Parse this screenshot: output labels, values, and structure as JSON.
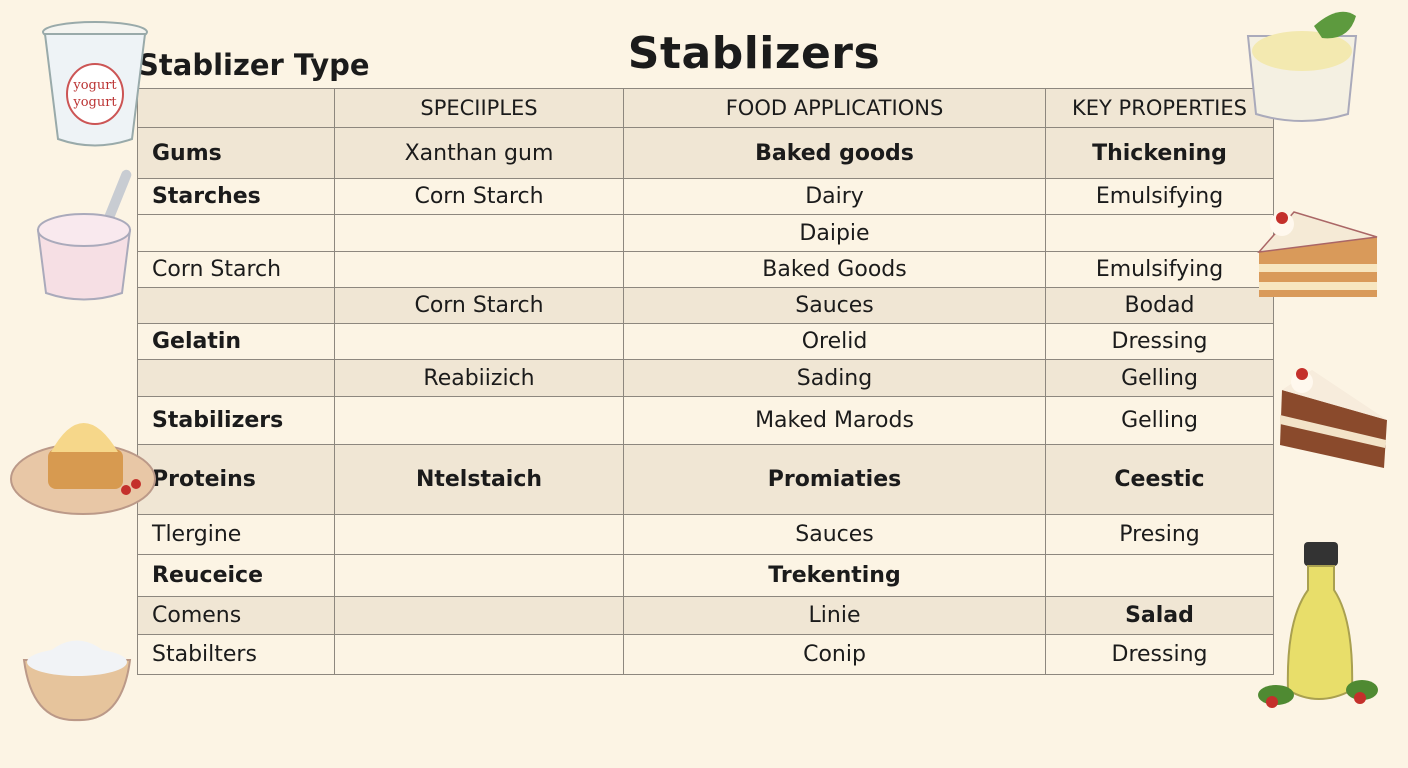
{
  "title": "Stablizers",
  "type_label": "Stablizer Type",
  "yogurt_logo": [
    "yogurt",
    "yogurt"
  ],
  "table": {
    "headers": [
      "",
      "SPECIIPLES",
      "FOOD APPLICATIONS",
      "KEY PROPERTIES"
    ],
    "rows": [
      {
        "cells": [
          "Gums",
          "Xanthan gum",
          "Baked goods",
          "Thickening"
        ],
        "bold": [
          true,
          false,
          true,
          true
        ],
        "shade": true
      },
      {
        "cells": [
          "Starches",
          "Corn Starch",
          "Dairy",
          "Emulsifying"
        ],
        "bold": [
          true,
          false,
          false,
          false
        ],
        "shade": false
      },
      {
        "cells": [
          "",
          "",
          "Daipie",
          ""
        ],
        "bold": [
          false,
          false,
          false,
          false
        ],
        "shade": false
      },
      {
        "cells": [
          "Corn Starch",
          "",
          "Baked Goods",
          "Emulsifying"
        ],
        "bold": [
          false,
          false,
          false,
          false
        ],
        "shade": false
      },
      {
        "cells": [
          "",
          "Corn Starch",
          "Sauces",
          "Bodad"
        ],
        "bold": [
          false,
          false,
          false,
          false
        ],
        "shade": true
      },
      {
        "cells": [
          "Gelatin",
          "",
          "Orelid",
          "Dressing"
        ],
        "bold": [
          true,
          false,
          false,
          false
        ],
        "shade": false
      },
      {
        "cells": [
          "",
          "Reabiizich",
          "Sading",
          "Gelling"
        ],
        "bold": [
          false,
          false,
          false,
          false
        ],
        "shade": true
      },
      {
        "cells": [
          "Stabilizers",
          "",
          "Maked Marods",
          "Gelling"
        ],
        "bold": [
          true,
          false,
          false,
          false
        ],
        "shade": false
      },
      {
        "cells": [
          "Proteins",
          "Ntelstaich",
          "Promiaties",
          "Ceestic"
        ],
        "bold": [
          true,
          true,
          true,
          true
        ],
        "shade": true
      },
      {
        "cells": [
          "Tlergine",
          "",
          "Sauces",
          "Presing"
        ],
        "bold": [
          false,
          false,
          false,
          false
        ],
        "shade": false
      },
      {
        "cells": [
          "Reuceice",
          "",
          "Trekenting",
          ""
        ],
        "bold": [
          true,
          false,
          true,
          false
        ],
        "shade": false
      },
      {
        "cells": [
          "Comens",
          "",
          "Linie",
          "Salad"
        ],
        "bold": [
          false,
          false,
          false,
          true
        ],
        "shade": true
      },
      {
        "cells": [
          "Stabilters",
          "",
          "Conip",
          "Dressing"
        ],
        "bold": [
          false,
          false,
          false,
          false
        ],
        "shade": false
      }
    ]
  },
  "colors": {
    "background": "#fcf4e4",
    "row_shade": "#f0e6d4",
    "border": "#8d877e"
  }
}
